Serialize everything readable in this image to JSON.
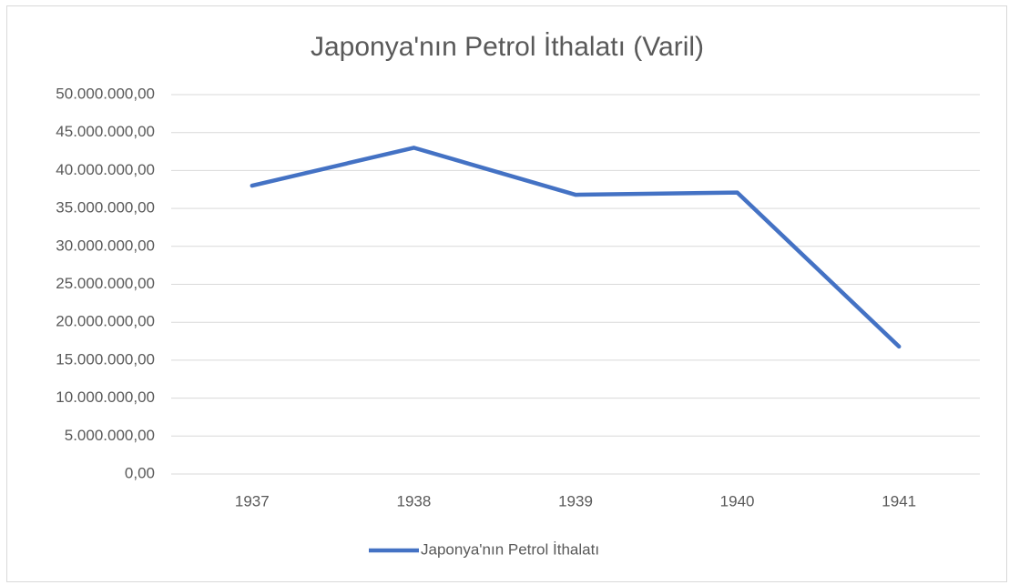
{
  "chart_data": {
    "type": "line",
    "title": "Japonya'nın Petrol İthalatı (Varil)",
    "categories": [
      "1937",
      "1938",
      "1939",
      "1940",
      "1941"
    ],
    "series": [
      {
        "name": "Japonya'nın Petrol İthalatı",
        "color": "#4472c4",
        "values": [
          38000000,
          43000000,
          36800000,
          37100000,
          16800000
        ]
      }
    ],
    "ylim": [
      0,
      50000000
    ],
    "yticks": [
      {
        "value": 0,
        "label": "0,00"
      },
      {
        "value": 5000000,
        "label": "5.000.000,00"
      },
      {
        "value": 10000000,
        "label": "10.000.000,00"
      },
      {
        "value": 15000000,
        "label": "15.000.000,00"
      },
      {
        "value": 20000000,
        "label": "20.000.000,00"
      },
      {
        "value": 25000000,
        "label": "25.000.000,00"
      },
      {
        "value": 30000000,
        "label": "30.000.000,00"
      },
      {
        "value": 35000000,
        "label": "35.000.000,00"
      },
      {
        "value": 40000000,
        "label": "40.000.000,00"
      },
      {
        "value": 45000000,
        "label": "45.000.000,00"
      },
      {
        "value": 50000000,
        "label": "50.000.000,00"
      }
    ],
    "grid": true,
    "legend": "bottom"
  }
}
